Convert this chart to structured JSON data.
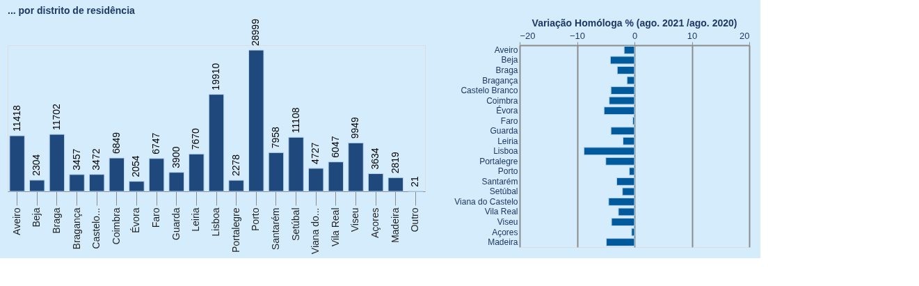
{
  "chart_data": [
    {
      "type": "bar",
      "title": "... por distrito de residência",
      "categories": [
        "Aveiro",
        "Beja",
        "Braga",
        "Bragança",
        "Castelo...",
        "Coimbra",
        "Évora",
        "Faro",
        "Guarda",
        "Leiria",
        "Lisboa",
        "Portalegre",
        "Porto",
        "Santarém",
        "Setúbal",
        "Viana do...",
        "Vila Real",
        "Viseu",
        "Açores",
        "Madeira",
        "Outro"
      ],
      "values": [
        11418,
        2304,
        11702,
        3457,
        3472,
        6849,
        2054,
        6747,
        3900,
        7670,
        19910,
        2278,
        28999,
        7958,
        11108,
        4727,
        6047,
        9949,
        3634,
        2819,
        21
      ],
      "color": "#1f497d",
      "data_labels": true,
      "tick_labels": "x"
    },
    {
      "type": "bar",
      "orientation": "horizontal",
      "title": "Variação Homóloga % (ago. 2021 /ago. 2020)",
      "categories": [
        "Aveiro",
        "Beja",
        "Braga",
        "Bragança",
        "Castelo Branco",
        "Coimbra",
        "Évora",
        "Faro",
        "Guarda",
        "Leiria",
        "Lisboa",
        "Portalegre",
        "Porto",
        "Santarém",
        "Setúbal",
        "Viana do Castelo",
        "Vila Real",
        "Viseu",
        "Açores",
        "Madeira"
      ],
      "values": [
        -1.8,
        -4.2,
        -3.0,
        -1.3,
        -4.1,
        -4.4,
        -5.3,
        -0.3,
        -4.1,
        -2.0,
        -8.8,
        -5.0,
        -0.9,
        -3.1,
        -2.1,
        -4.5,
        -2.8,
        -4.0,
        -0.5,
        -4.9
      ],
      "color": "#005a9c",
      "xlim": [
        -20,
        20
      ],
      "xticks": [
        -20,
        -10,
        0,
        10,
        20
      ],
      "grid": "x"
    }
  ]
}
